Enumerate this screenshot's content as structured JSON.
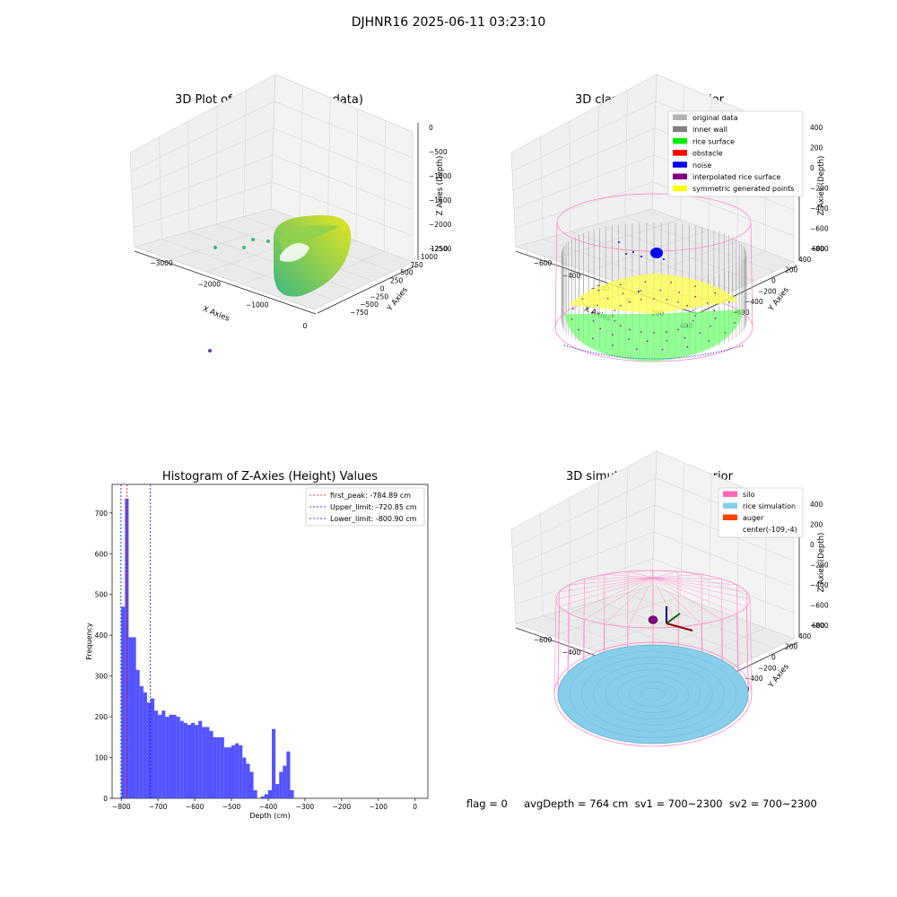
{
  "figure": {
    "suptitle": "DJHNR16 2025-06-11 03:23:10",
    "status_text": "flag = 0     avgDepth = 764 cm  sv1 = 700~2300  sv2 = 700~2300"
  },
  "chart_data": [
    {
      "type": "scatter",
      "title": "3D Plot of Silo Interior(row data)",
      "xlabel": "X Axies",
      "ylabel": "Y Axies",
      "zlabel": "Z Axies (Depth)",
      "x_ticks": [
        "−3000",
        "−2000",
        "−1000",
        "0"
      ],
      "y_ticks": [
        "−750",
        "−500",
        "−250",
        "0",
        "250",
        "500",
        "750",
        "1000",
        "1250"
      ],
      "z_ticks": [
        "0",
        "−500",
        "−1000",
        "−1500",
        "−2000",
        "−2500"
      ],
      "colors": {
        "low": "#3bb77e",
        "high": "#e6e620",
        "outlier": "#5e3c99"
      }
    },
    {
      "type": "scatter",
      "title": "3D classify of Silo Interior",
      "xlabel": "X Axies",
      "ylabel": "Y Axies",
      "zlabel": "Z Axies (Depth)",
      "x_ticks": [
        "−600",
        "−400",
        "−200",
        "0",
        "200",
        "400"
      ],
      "y_ticks": [
        "−600",
        "−400",
        "−200",
        "0",
        "200",
        "400",
        "600"
      ],
      "z_ticks": [
        "400",
        "200",
        "0",
        "−200",
        "−400",
        "−600",
        "−800"
      ],
      "legend": [
        {
          "label": "original data",
          "color": "#b3b3b3"
        },
        {
          "label": "inner wall",
          "color": "#808080"
        },
        {
          "label": "rice surface",
          "color": "#00ee00"
        },
        {
          "label": "obstacle",
          "color": "#ff0000"
        },
        {
          "label": "noise",
          "color": "#0000ee"
        },
        {
          "label": "interpolated rice surface",
          "color": "#800080"
        },
        {
          "label": "symmetric generated points",
          "color": "#ffff00"
        }
      ],
      "legend_position": "top-right"
    },
    {
      "type": "bar",
      "title": "Histogram of Z-Axies (Height) Values",
      "xlabel": "Depth (cm)",
      "ylabel": "Frequency",
      "xlim": [
        -825,
        35
      ],
      "ylim": [
        0,
        770
      ],
      "bin_width": 10,
      "bins_start": [
        -800,
        -790,
        -780,
        -770,
        -760,
        -750,
        -740,
        -730,
        -720,
        -710,
        -700,
        -690,
        -680,
        -670,
        -660,
        -650,
        -640,
        -630,
        -620,
        -610,
        -600,
        -590,
        -580,
        -570,
        -560,
        -550,
        -540,
        -530,
        -520,
        -510,
        -500,
        -490,
        -480,
        -470,
        -460,
        -450,
        -440,
        -430,
        -420,
        -410,
        -400,
        -390,
        -380,
        -370,
        -360,
        -350,
        -340,
        -330,
        -320,
        -310,
        -300,
        -290,
        -280,
        -270,
        -260,
        -250,
        -240,
        -230,
        -220,
        -210,
        -200,
        -190,
        -180,
        -170,
        -160,
        -150,
        -140,
        -130,
        -120,
        -110,
        -100,
        -90,
        -80,
        -70,
        -60,
        -50,
        -40,
        -30,
        -20,
        -10,
        0
      ],
      "values": [
        470,
        735,
        395,
        395,
        315,
        275,
        260,
        235,
        245,
        215,
        205,
        215,
        200,
        205,
        205,
        200,
        190,
        185,
        180,
        185,
        180,
        190,
        175,
        175,
        165,
        150,
        150,
        150,
        125,
        125,
        130,
        135,
        130,
        100,
        85,
        65,
        20,
        0,
        5,
        10,
        20,
        170,
        35,
        65,
        80,
        115,
        20,
        0,
        0,
        0,
        0,
        0,
        0,
        0,
        0,
        0,
        0,
        0,
        0,
        0,
        0,
        0,
        0,
        0,
        0,
        0,
        0,
        0,
        0,
        0,
        0,
        0,
        0,
        0,
        0,
        0,
        0,
        0,
        0,
        0,
        0
      ],
      "x_ticks": [
        -800,
        -700,
        -600,
        -500,
        -400,
        -300,
        -200,
        -100,
        0
      ],
      "y_ticks": [
        0,
        100,
        200,
        300,
        400,
        500,
        600,
        700
      ],
      "bar_color": "#5050ff",
      "lines": [
        {
          "label": "first_peak: -784.89 cm",
          "x": -784.89,
          "color": "#ff0000"
        },
        {
          "label": "Upper_limit: -720.85 cm",
          "x": -720.85,
          "color": "#0000ff"
        },
        {
          "label": "Lower_limit: -800.90 cm",
          "x": -800.9,
          "color": "#0000ff"
        }
      ],
      "legend_position": "top-right"
    },
    {
      "type": "scatter",
      "title": "3D simulation of Silo Interior",
      "xlabel": "X Axies",
      "ylabel": "Y Axies",
      "zlabel": "Z Axies (Depth)",
      "x_ticks": [
        "−600",
        "−400",
        "−200",
        "0",
        "200",
        "400"
      ],
      "y_ticks": [
        "−600",
        "−400",
        "−200",
        "0",
        "200",
        "400",
        "600"
      ],
      "z_ticks": [
        "400",
        "200",
        "0",
        "−200",
        "−400",
        "−600",
        "−800"
      ],
      "legend": [
        {
          "label": "silo",
          "color": "#ff69b4"
        },
        {
          "label": "rice simulation",
          "color": "#87ceeb"
        },
        {
          "label": "auger",
          "color": "#ff4500"
        },
        {
          "label": "center(-109,-4)",
          "color": "none"
        }
      ],
      "legend_position": "top-right"
    }
  ]
}
